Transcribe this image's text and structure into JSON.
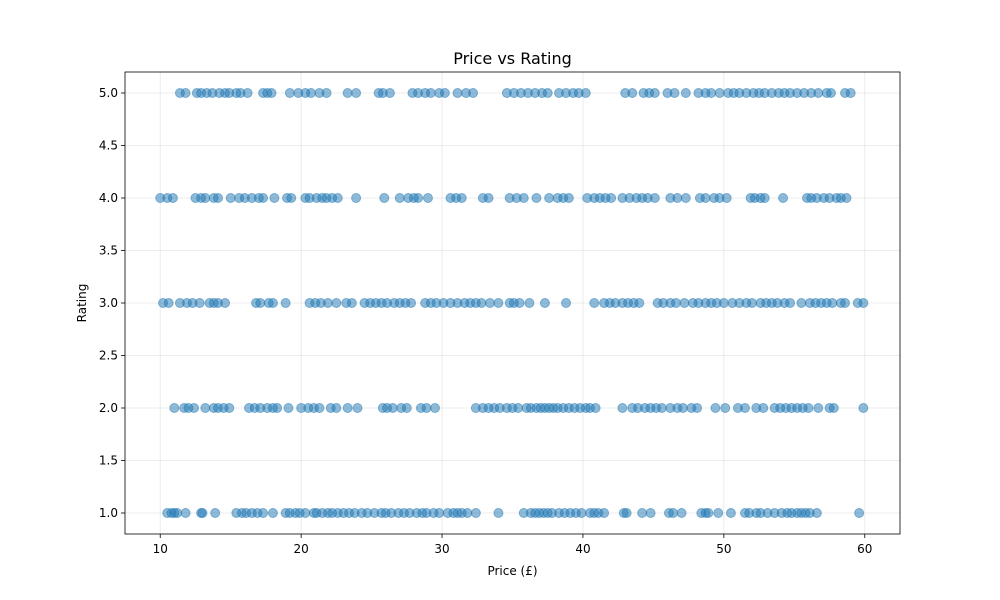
{
  "chart_data": {
    "type": "scatter",
    "title": "Price vs Rating",
    "xlabel": "Price (£)",
    "ylabel": "Rating",
    "xlim": [
      7.5,
      62.5
    ],
    "ylim": [
      0.8,
      5.2
    ],
    "xticks": [
      10,
      20,
      30,
      40,
      50,
      60
    ],
    "yticks": [
      1.0,
      1.5,
      2.0,
      2.5,
      3.0,
      3.5,
      4.0,
      4.5,
      5.0
    ],
    "grid": true,
    "marker_color": "#1f77b4",
    "marker_alpha": 0.5,
    "points_by_rating": [
      {
        "rating": 1.0,
        "x": [
          10.5,
          10.8,
          11.0,
          11.2,
          11.8,
          12.9,
          13.0,
          13.9,
          15.4,
          15.8,
          16.1,
          16.5,
          16.9,
          17.3,
          18.0,
          18.9,
          19.2,
          19.6,
          19.9,
          20.3,
          20.9,
          21.1,
          21.5,
          21.9,
          22.2,
          22.6,
          23.0,
          23.4,
          23.8,
          24.3,
          24.7,
          25.2,
          25.7,
          26.0,
          26.4,
          26.9,
          27.3,
          27.7,
          28.2,
          28.6,
          28.9,
          29.4,
          29.8,
          30.4,
          30.8,
          31.1,
          31.4,
          31.8,
          32.4,
          34.0,
          35.8,
          36.3,
          36.6,
          36.9,
          37.2,
          37.5,
          37.8,
          38.3,
          38.7,
          39.1,
          39.5,
          39.9,
          40.5,
          40.8,
          41.1,
          41.5,
          42.9,
          43.1,
          44.2,
          44.8,
          46.1,
          46.4,
          47.0,
          48.4,
          48.7,
          48.9,
          49.6,
          50.5,
          51.5,
          51.8,
          52.3,
          52.6,
          53.1,
          53.6,
          54.1,
          54.5,
          54.8,
          55.2,
          55.5,
          55.8,
          56.1,
          56.6,
          59.6
        ]
      },
      {
        "rating": 2.0,
        "x": [
          11.0,
          11.7,
          12.0,
          12.4,
          13.2,
          13.8,
          14.1,
          14.5,
          14.9,
          16.3,
          16.7,
          17.1,
          17.6,
          18.0,
          18.3,
          19.1,
          20.0,
          20.5,
          20.9,
          21.3,
          22.1,
          22.5,
          23.3,
          24.0,
          25.8,
          26.1,
          26.5,
          27.1,
          27.5,
          28.5,
          28.9,
          29.5,
          32.4,
          32.9,
          33.3,
          33.7,
          34.1,
          34.6,
          35.0,
          35.4,
          36.0,
          36.3,
          36.7,
          37.0,
          37.3,
          37.6,
          37.9,
          38.2,
          38.6,
          39.0,
          39.4,
          39.8,
          40.2,
          40.5,
          40.9,
          42.8,
          43.5,
          43.9,
          44.4,
          44.8,
          45.2,
          45.6,
          46.2,
          46.7,
          47.1,
          47.7,
          48.1,
          49.4,
          50.1,
          51.0,
          51.5,
          52.3,
          52.8,
          53.6,
          54.0,
          54.4,
          54.8,
          55.2,
          55.6,
          56.0,
          56.7,
          57.5,
          57.8,
          59.9
        ]
      },
      {
        "rating": 3.0,
        "x": [
          10.2,
          10.6,
          11.4,
          11.9,
          12.3,
          12.8,
          13.5,
          13.8,
          14.1,
          14.6,
          16.8,
          17.1,
          17.7,
          18.0,
          18.9,
          20.6,
          21.0,
          21.4,
          21.9,
          22.5,
          23.2,
          23.6,
          24.5,
          24.9,
          25.3,
          25.7,
          26.1,
          26.6,
          27.0,
          27.4,
          27.8,
          28.8,
          29.2,
          29.6,
          30.1,
          30.6,
          31.1,
          31.6,
          32.0,
          32.4,
          32.8,
          33.4,
          34.0,
          34.8,
          35.1,
          35.5,
          36.2,
          37.3,
          38.8,
          40.8,
          41.5,
          41.9,
          42.3,
          42.8,
          43.2,
          43.6,
          44.0,
          45.3,
          45.7,
          46.2,
          46.6,
          47.2,
          47.8,
          48.2,
          48.7,
          49.1,
          49.5,
          50.0,
          50.6,
          51.1,
          51.6,
          52.0,
          52.6,
          53.0,
          53.4,
          53.8,
          54.3,
          54.7,
          55.5,
          56.1,
          56.5,
          56.9,
          57.3,
          57.7,
          58.3,
          58.6,
          59.5,
          59.9
        ]
      },
      {
        "rating": 4.0,
        "x": [
          10.0,
          10.5,
          10.9,
          12.5,
          12.9,
          13.2,
          13.8,
          14.1,
          15.0,
          15.6,
          16.0,
          16.5,
          17.0,
          17.3,
          18.1,
          19.0,
          19.3,
          20.3,
          20.6,
          21.1,
          21.5,
          21.8,
          22.2,
          22.6,
          23.9,
          25.9,
          27.0,
          27.6,
          28.0,
          28.3,
          29.0,
          30.6,
          31.0,
          31.4,
          32.9,
          33.3,
          34.8,
          35.3,
          35.8,
          36.7,
          37.6,
          38.2,
          38.6,
          39.0,
          40.3,
          40.8,
          41.2,
          41.6,
          42.0,
          42.8,
          43.3,
          43.8,
          44.2,
          44.6,
          45.1,
          46.2,
          46.7,
          47.3,
          48.3,
          48.7,
          49.3,
          49.7,
          50.2,
          51.9,
          52.2,
          52.6,
          52.9,
          54.2,
          55.9,
          56.2,
          56.6,
          57.1,
          57.5,
          58.0,
          58.3,
          58.7
        ]
      },
      {
        "rating": 5.0,
        "x": [
          11.4,
          11.8,
          12.6,
          12.9,
          13.3,
          13.7,
          14.2,
          14.6,
          14.9,
          15.4,
          15.7,
          16.2,
          17.3,
          17.6,
          17.9,
          19.2,
          19.8,
          20.3,
          20.7,
          21.3,
          21.8,
          23.3,
          23.9,
          25.5,
          25.8,
          26.3,
          27.9,
          28.3,
          28.8,
          29.2,
          29.8,
          30.2,
          31.1,
          31.7,
          32.2,
          34.6,
          35.1,
          35.6,
          36.1,
          36.6,
          37.1,
          37.5,
          38.3,
          38.8,
          39.3,
          39.7,
          40.2,
          43.0,
          43.5,
          44.3,
          44.7,
          45.1,
          46.0,
          46.5,
          47.3,
          48.2,
          48.7,
          49.1,
          49.7,
          50.3,
          50.7,
          51.1,
          51.6,
          52.1,
          52.5,
          52.9,
          53.4,
          53.9,
          54.3,
          54.7,
          55.2,
          55.7,
          56.2,
          56.7,
          57.3,
          57.6,
          58.6,
          59.0
        ]
      }
    ]
  }
}
